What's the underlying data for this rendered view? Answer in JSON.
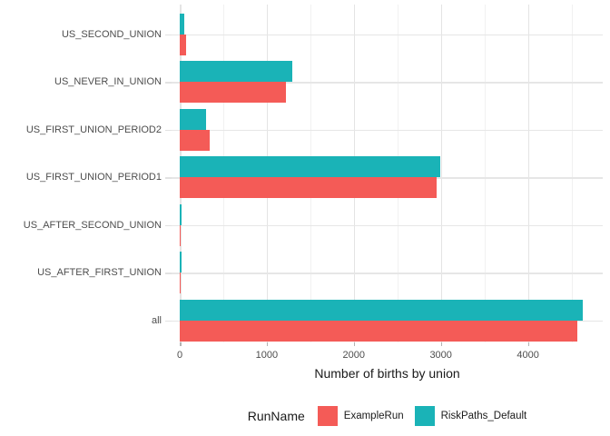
{
  "chart_data": {
    "type": "bar",
    "orientation": "horizontal",
    "title": "",
    "xlabel": "Number of births by union",
    "ylabel": "",
    "categories_top_to_bottom": [
      "US_SECOND_UNION",
      "US_NEVER_IN_UNION",
      "US_FIRST_UNION_PERIOD2",
      "US_FIRST_UNION_PERIOD1",
      "US_AFTER_SECOND_UNION",
      "US_AFTER_FIRST_UNION",
      "all"
    ],
    "series": [
      {
        "name": "ExampleRun",
        "color": "#F45B57",
        "values": [
          75,
          1215,
          340,
          2950,
          10,
          10,
          4565
        ]
      },
      {
        "name": "RiskPaths_Default",
        "color": "#1AB3B7",
        "values": [
          55,
          1295,
          300,
          2995,
          18,
          18,
          4630
        ]
      }
    ],
    "x_ticks": [
      0,
      1000,
      2000,
      3000,
      4000
    ],
    "x_minor_ticks": [
      500,
      1500,
      2500,
      3500,
      4500
    ],
    "xlim": [
      0,
      4860
    ],
    "grid": true,
    "legend": {
      "title": "RunName",
      "position": "bottom"
    }
  },
  "colors": {
    "series_example_run": "#F45B57",
    "series_riskpaths_default": "#1AB3B7",
    "grid_major": "#E4E4E4",
    "grid_minor": "#F1F1F1",
    "axis_tick": "#B3B3B3",
    "tick_label_text": "#4D4D4D",
    "axis_title_text": "#1A1A1A"
  }
}
